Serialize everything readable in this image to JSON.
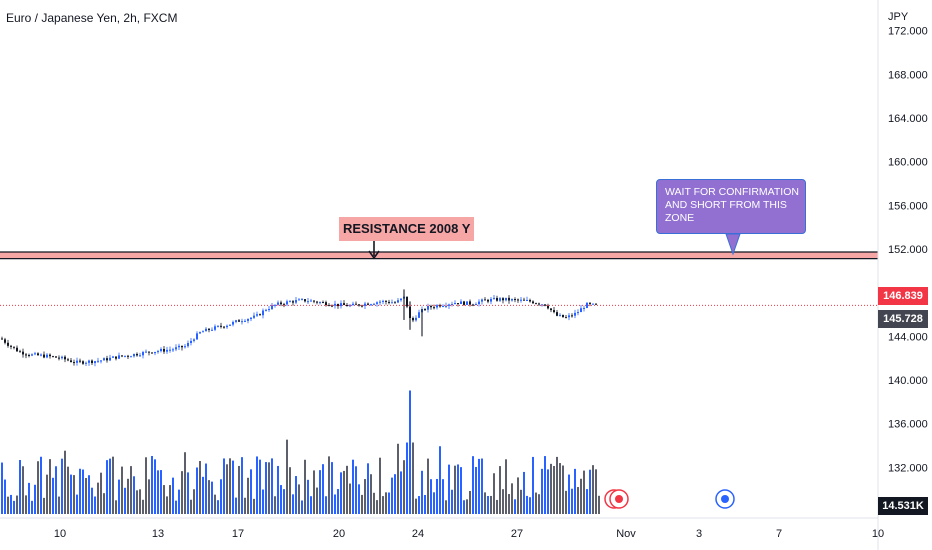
{
  "header": {
    "title": "Euro / Japanese Yen, 2h, FXCM",
    "currency": "JPY"
  },
  "price_tags": {
    "last": "146.839",
    "ref": "145.728",
    "volume": "14.531K"
  },
  "colors": {
    "up": "#2962ff",
    "down": "#131722",
    "resistance_fill": "#f7a6a6",
    "callout": "#9170d1",
    "last_price": "#f23645"
  },
  "icons": [
    "event-icon",
    "event-icon",
    "event-icon-blue"
  ],
  "annotations": {
    "resistance_label": "RESISTANCE 2008 Y",
    "callout_text": "WAIT FOR CONFIRMATION AND SHORT FROM THIS ZONE"
  },
  "chart_data": {
    "type": "candlestick",
    "y_axis": {
      "ticks": [
        "172.000",
        "168.000",
        "164.000",
        "160.000",
        "156.000",
        "152.000",
        "144.000",
        "140.000",
        "136.000",
        "132.000"
      ],
      "range": [
        129,
        173
      ]
    },
    "x_axis": {
      "ticks": [
        "10",
        "13",
        "17",
        "20",
        "24",
        "27",
        "Nov",
        "3",
        "7",
        "10"
      ]
    },
    "resistance_zone": [
      151.3,
      152.0
    ],
    "last_price": 146.839,
    "ref_price": 145.728,
    "price_path": [
      {
        "x": 0,
        "y": 143.8
      },
      {
        "x": 8,
        "y": 143.2
      },
      {
        "x": 18,
        "y": 142.6
      },
      {
        "x": 30,
        "y": 142.3
      },
      {
        "x": 45,
        "y": 142.2
      },
      {
        "x": 60,
        "y": 142.0
      },
      {
        "x": 75,
        "y": 141.6
      },
      {
        "x": 88,
        "y": 141.7
      },
      {
        "x": 100,
        "y": 141.8
      },
      {
        "x": 115,
        "y": 142.1
      },
      {
        "x": 130,
        "y": 142.3
      },
      {
        "x": 150,
        "y": 142.6
      },
      {
        "x": 170,
        "y": 142.8
      },
      {
        "x": 185,
        "y": 143.1
      },
      {
        "x": 192,
        "y": 143.8
      },
      {
        "x": 200,
        "y": 144.4
      },
      {
        "x": 215,
        "y": 144.8
      },
      {
        "x": 228,
        "y": 145.1
      },
      {
        "x": 240,
        "y": 145.5
      },
      {
        "x": 255,
        "y": 145.8
      },
      {
        "x": 265,
        "y": 146.5
      },
      {
        "x": 275,
        "y": 146.9
      },
      {
        "x": 290,
        "y": 147.2
      },
      {
        "x": 305,
        "y": 147.3
      },
      {
        "x": 320,
        "y": 147.1
      },
      {
        "x": 335,
        "y": 146.9
      },
      {
        "x": 350,
        "y": 146.8
      },
      {
        "x": 365,
        "y": 147.0
      },
      {
        "x": 380,
        "y": 147.2
      },
      {
        "x": 395,
        "y": 147.1
      },
      {
        "x": 404,
        "y": 147.6
      },
      {
        "x": 410,
        "y": 145.2
      },
      {
        "x": 416,
        "y": 146.0
      },
      {
        "x": 425,
        "y": 146.6
      },
      {
        "x": 440,
        "y": 146.9
      },
      {
        "x": 455,
        "y": 147.1
      },
      {
        "x": 470,
        "y": 147.0
      },
      {
        "x": 485,
        "y": 147.3
      },
      {
        "x": 500,
        "y": 147.4
      },
      {
        "x": 515,
        "y": 147.3
      },
      {
        "x": 530,
        "y": 147.2
      },
      {
        "x": 545,
        "y": 146.9
      },
      {
        "x": 555,
        "y": 145.9
      },
      {
        "x": 565,
        "y": 145.7
      },
      {
        "x": 575,
        "y": 146.1
      },
      {
        "x": 585,
        "y": 146.9
      },
      {
        "x": 597,
        "y": 146.8
      }
    ],
    "wick_spikes": [
      {
        "x": 404,
        "high": 148.3,
        "low": 145.5
      },
      {
        "x": 410,
        "high": 147.2,
        "low": 144.6
      },
      {
        "x": 422,
        "high": 146.5,
        "low": 144.0
      }
    ],
    "volume": {
      "count": 200,
      "spike": {
        "index": 136,
        "value": 0.95
      },
      "base_range": [
        0.1,
        0.45
      ]
    }
  }
}
